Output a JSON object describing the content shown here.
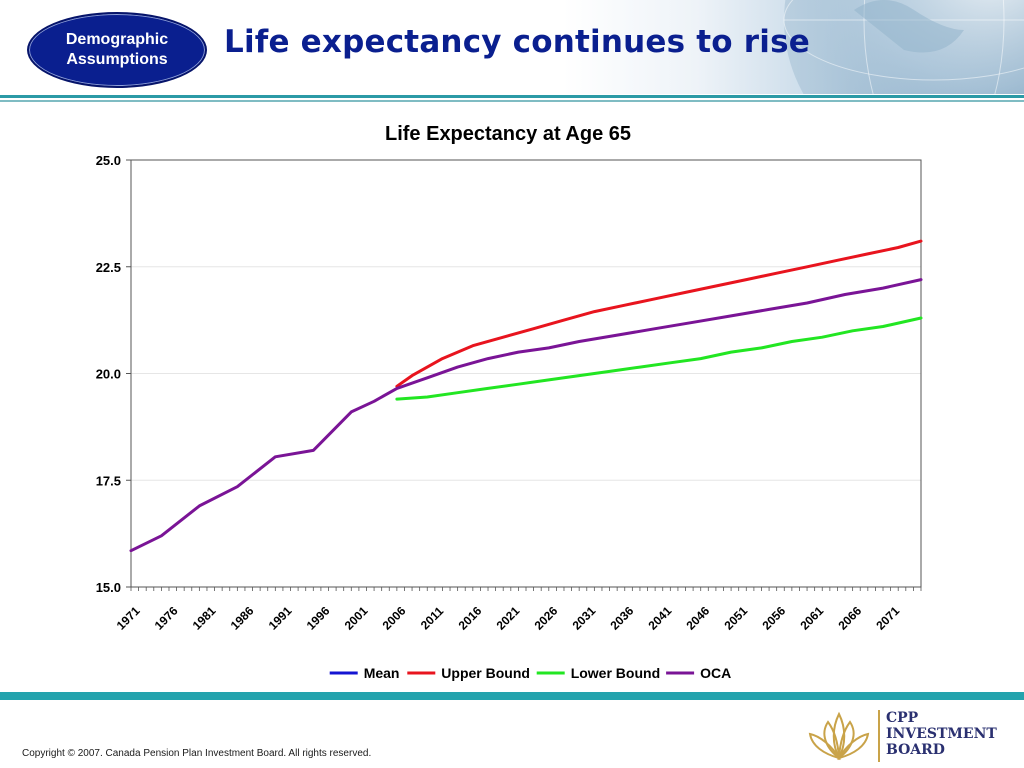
{
  "header": {
    "section_badge_line1": "Demographic",
    "section_badge_line2": "Assumptions",
    "title": "Life expectancy continues to rise"
  },
  "chart_data": {
    "type": "line",
    "title": "Life Expectancy at Age 65",
    "xlabel": "",
    "ylabel": "",
    "x_range": [
      1971,
      2075
    ],
    "ylim": [
      15.0,
      25.0
    ],
    "y_ticks": [
      "15.0",
      "17.5",
      "20.0",
      "22.5",
      "25.0"
    ],
    "x_ticks": [
      "1971",
      "1976",
      "1981",
      "1986",
      "1991",
      "1996",
      "2001",
      "2006",
      "2011",
      "2016",
      "2021",
      "2026",
      "2031",
      "2036",
      "2041",
      "2046",
      "2051",
      "2056",
      "2061",
      "2066",
      "2071"
    ],
    "grid": "horizontal",
    "legend_position": "bottom",
    "series": [
      {
        "name": "Mean",
        "color": "#1414d2",
        "x": [],
        "y": []
      },
      {
        "name": "Upper Bound",
        "color": "#e8141e",
        "x": [
          2006,
          2008,
          2012,
          2016,
          2020,
          2024,
          2028,
          2032,
          2036,
          2040,
          2044,
          2048,
          2052,
          2056,
          2060,
          2064,
          2068,
          2072,
          2075
        ],
        "y": [
          19.7,
          19.95,
          20.35,
          20.65,
          20.85,
          21.05,
          21.25,
          21.45,
          21.6,
          21.75,
          21.9,
          22.05,
          22.2,
          22.35,
          22.5,
          22.65,
          22.8,
          22.95,
          23.1
        ]
      },
      {
        "name": "Lower Bound",
        "color": "#22e622",
        "x": [
          2006,
          2010,
          2014,
          2018,
          2022,
          2026,
          2030,
          2034,
          2038,
          2042,
          2046,
          2050,
          2054,
          2058,
          2062,
          2066,
          2070,
          2075
        ],
        "y": [
          19.4,
          19.45,
          19.55,
          19.65,
          19.75,
          19.85,
          19.95,
          20.05,
          20.15,
          20.25,
          20.35,
          20.5,
          20.6,
          20.75,
          20.85,
          21.0,
          21.1,
          21.3
        ]
      },
      {
        "name": "OCA",
        "color": "#7a1496",
        "x": [
          1971,
          1975,
          1980,
          1985,
          1990,
          1995,
          2000,
          2003,
          2006,
          2010,
          2014,
          2018,
          2022,
          2026,
          2030,
          2035,
          2040,
          2045,
          2050,
          2055,
          2060,
          2065,
          2070,
          2075
        ],
        "y": [
          15.85,
          16.2,
          16.9,
          17.35,
          18.05,
          18.2,
          19.1,
          19.35,
          19.65,
          19.9,
          20.15,
          20.35,
          20.5,
          20.6,
          20.75,
          20.9,
          21.05,
          21.2,
          21.35,
          21.5,
          21.65,
          21.85,
          22.0,
          22.2
        ]
      }
    ]
  },
  "footer": {
    "copyright": "Copyright © 2007. Canada Pension Plan Investment Board. All rights reserved.",
    "logo_line1": "CPP",
    "logo_line2": "INVESTMENT",
    "logo_line3": "BOARD"
  }
}
